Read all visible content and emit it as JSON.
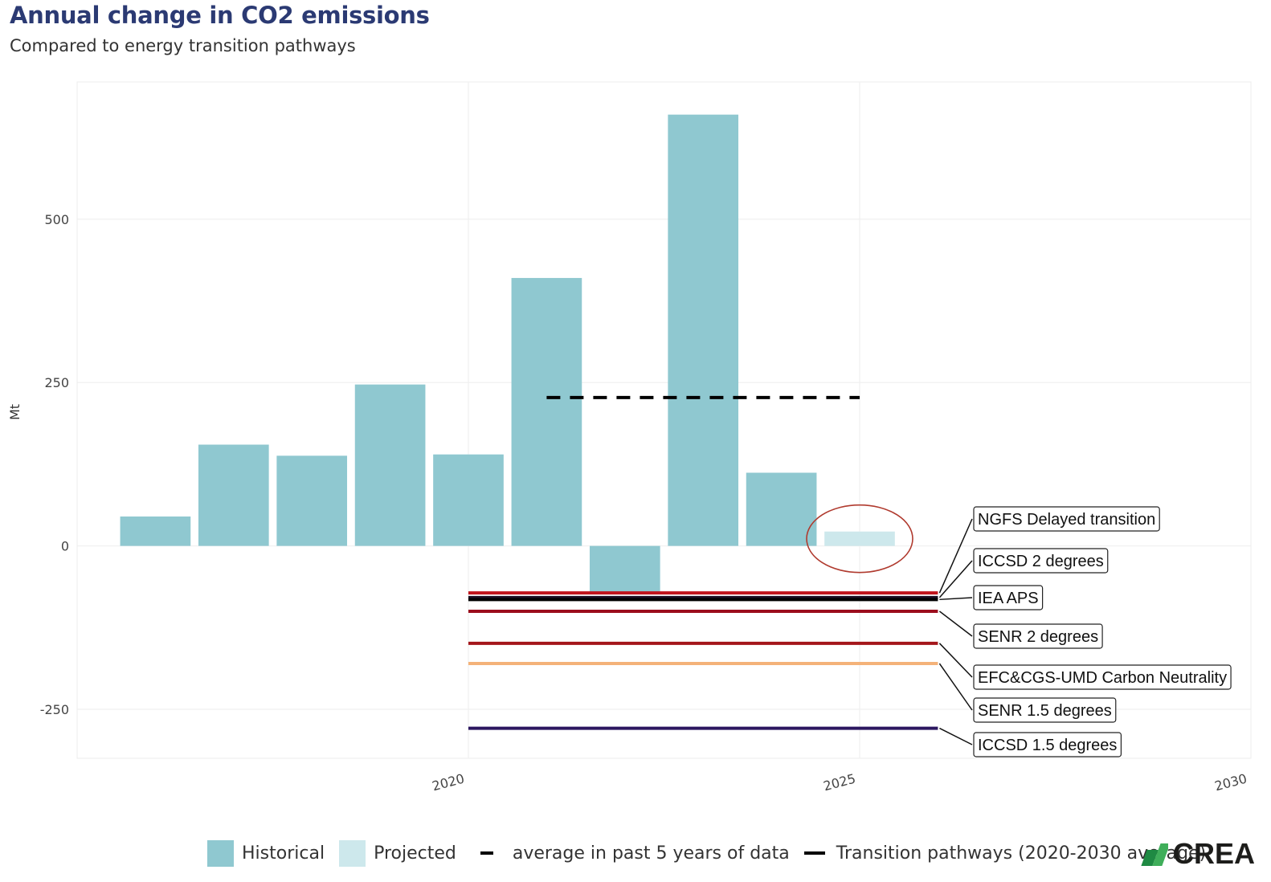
{
  "title": "Annual change in CO2 emissions",
  "subtitle": "Compared to energy transition pathways",
  "colors": {
    "historical": "#8fc8d0",
    "projected": "#cde8ec",
    "average": "#000000",
    "highlight_circle": "#b03a2e",
    "title": "#2b3a73"
  },
  "chart_data": {
    "type": "bar",
    "ylabel": "Mt",
    "xlabel": "",
    "xlim": [
      2015,
      2030
    ],
    "ylim": [
      -325,
      710
    ],
    "x_ticks": [
      "2020",
      "2025",
      "2030"
    ],
    "y_ticks": [
      "500",
      "250",
      "0",
      "-250"
    ],
    "grid": true,
    "bars": [
      {
        "year": 2016,
        "value": 45,
        "type": "Historical"
      },
      {
        "year": 2017,
        "value": 155,
        "type": "Historical"
      },
      {
        "year": 2018,
        "value": 138,
        "type": "Historical"
      },
      {
        "year": 2019,
        "value": 247,
        "type": "Historical"
      },
      {
        "year": 2020,
        "value": 140,
        "type": "Historical"
      },
      {
        "year": 2021,
        "value": 410,
        "type": "Historical"
      },
      {
        "year": 2022,
        "value": -70,
        "type": "Historical"
      },
      {
        "year": 2023,
        "value": 660,
        "type": "Historical"
      },
      {
        "year": 2024,
        "value": 112,
        "type": "Historical"
      },
      {
        "year": 2025,
        "value": 22,
        "type": "Projected"
      }
    ],
    "average_line": {
      "label": "average in past 5 years of data",
      "x": [
        2021,
        2025
      ],
      "value": 227
    },
    "pathways": [
      {
        "name": "NGFS Delayed transition",
        "value": -72,
        "color": "#c0141c"
      },
      {
        "name": "ICCSD 2 degrees",
        "value": -79,
        "color": "#1a0f24"
      },
      {
        "name": "IEA APS",
        "value": -82,
        "color": "#000000"
      },
      {
        "name": "SENR 2 degrees",
        "value": -100,
        "color": "#9b0d1d"
      },
      {
        "name": "EFC&CGS-UMD Carbon Neutrality",
        "value": -149,
        "color": "#a4161a"
      },
      {
        "name": "SENR 1.5 degrees",
        "value": -180,
        "color": "#f4b279"
      },
      {
        "name": "ICCSD 1.5 degrees",
        "value": -279,
        "color": "#2c1760"
      }
    ],
    "pathway_range": [
      2020,
      2026
    ],
    "legend": {
      "historical": "Historical",
      "projected": "Projected",
      "average": "average in past 5 years of data",
      "pathways": "Transition pathways (2020-2030 average)"
    }
  },
  "logo": {
    "text": "CREA"
  }
}
